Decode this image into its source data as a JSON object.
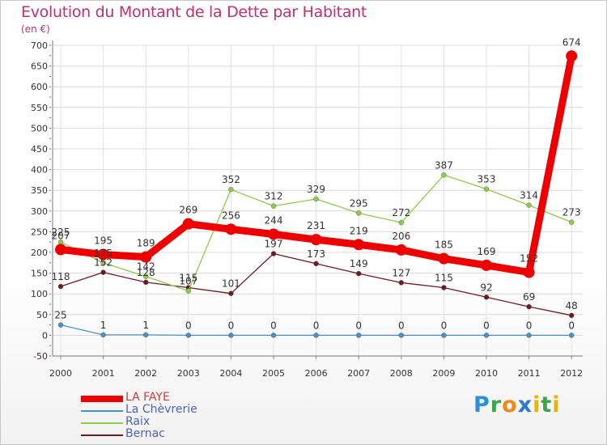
{
  "title": "Evolution du Montant de la Dette par Habitant",
  "subtitle": "(en €)",
  "logo": {
    "letters": [
      {
        "ch": "P",
        "color": "#2f8fd6"
      },
      {
        "ch": "r",
        "color": "#3aa64a"
      },
      {
        "ch": "o",
        "color": "#f08a1a"
      },
      {
        "ch": "x",
        "color": "#2a7ad0"
      },
      {
        "ch": "i",
        "color": "#e8b20f"
      },
      {
        "ch": "t",
        "color": "#3aa64a"
      },
      {
        "ch": "i",
        "color": "#e8b20f"
      }
    ]
  },
  "chart_data": {
    "type": "line",
    "x": [
      "2000",
      "2001",
      "2002",
      "2003",
      "2004",
      "2005",
      "2006",
      "2007",
      "2008",
      "2009",
      "2010",
      "2011",
      "2012"
    ],
    "ylim": [
      -50,
      700
    ],
    "yticks": [
      "-50",
      "0",
      "50",
      "100",
      "150",
      "200",
      "250",
      "300",
      "350",
      "400",
      "450",
      "500",
      "550",
      "600",
      "650",
      "700"
    ],
    "grid": true,
    "legend_position": "bottom-left",
    "series": [
      {
        "name": "LA FAYE",
        "color": "#ee0000",
        "width": 9,
        "marker": 7,
        "values": [
          207,
          195,
          189,
          269,
          256,
          244,
          231,
          219,
          206,
          185,
          169,
          152,
          674
        ],
        "labels": [
          "207",
          "195",
          "189",
          "269",
          "256",
          "244",
          "231",
          "219",
          "206",
          "185",
          "169",
          "152",
          "674"
        ]
      },
      {
        "name": "La Chèvrerie",
        "color": "#4a90c8",
        "width": 1.3,
        "marker": 3,
        "values": [
          25,
          1,
          1,
          0,
          0,
          0,
          0,
          0,
          0,
          0,
          0,
          0,
          0
        ],
        "labels": [
          "25",
          "1",
          "1",
          "0",
          "0",
          "0",
          "0",
          "0",
          "0",
          "0",
          "0",
          "0",
          "0"
        ]
      },
      {
        "name": "Raix",
        "color": "#8ccc4a",
        "width": 1.3,
        "marker": 3,
        "values": [
          225,
          175,
          142,
          107,
          352,
          312,
          329,
          295,
          272,
          387,
          353,
          314,
          273
        ],
        "labels": [
          "225",
          "175",
          "142",
          "107",
          "352",
          "312",
          "329",
          "295",
          "272",
          "387",
          "353",
          "314",
          "273"
        ]
      },
      {
        "name": "Bernac",
        "color": "#6e1a22",
        "width": 1.3,
        "marker": 3,
        "values": [
          118,
          152,
          128,
          115,
          101,
          197,
          173,
          149,
          127,
          115,
          92,
          69,
          48
        ],
        "labels": [
          "118",
          "152",
          "128",
          "115",
          "101",
          "197",
          "173",
          "149",
          "127",
          "115",
          "92",
          "69",
          "48"
        ]
      }
    ]
  }
}
